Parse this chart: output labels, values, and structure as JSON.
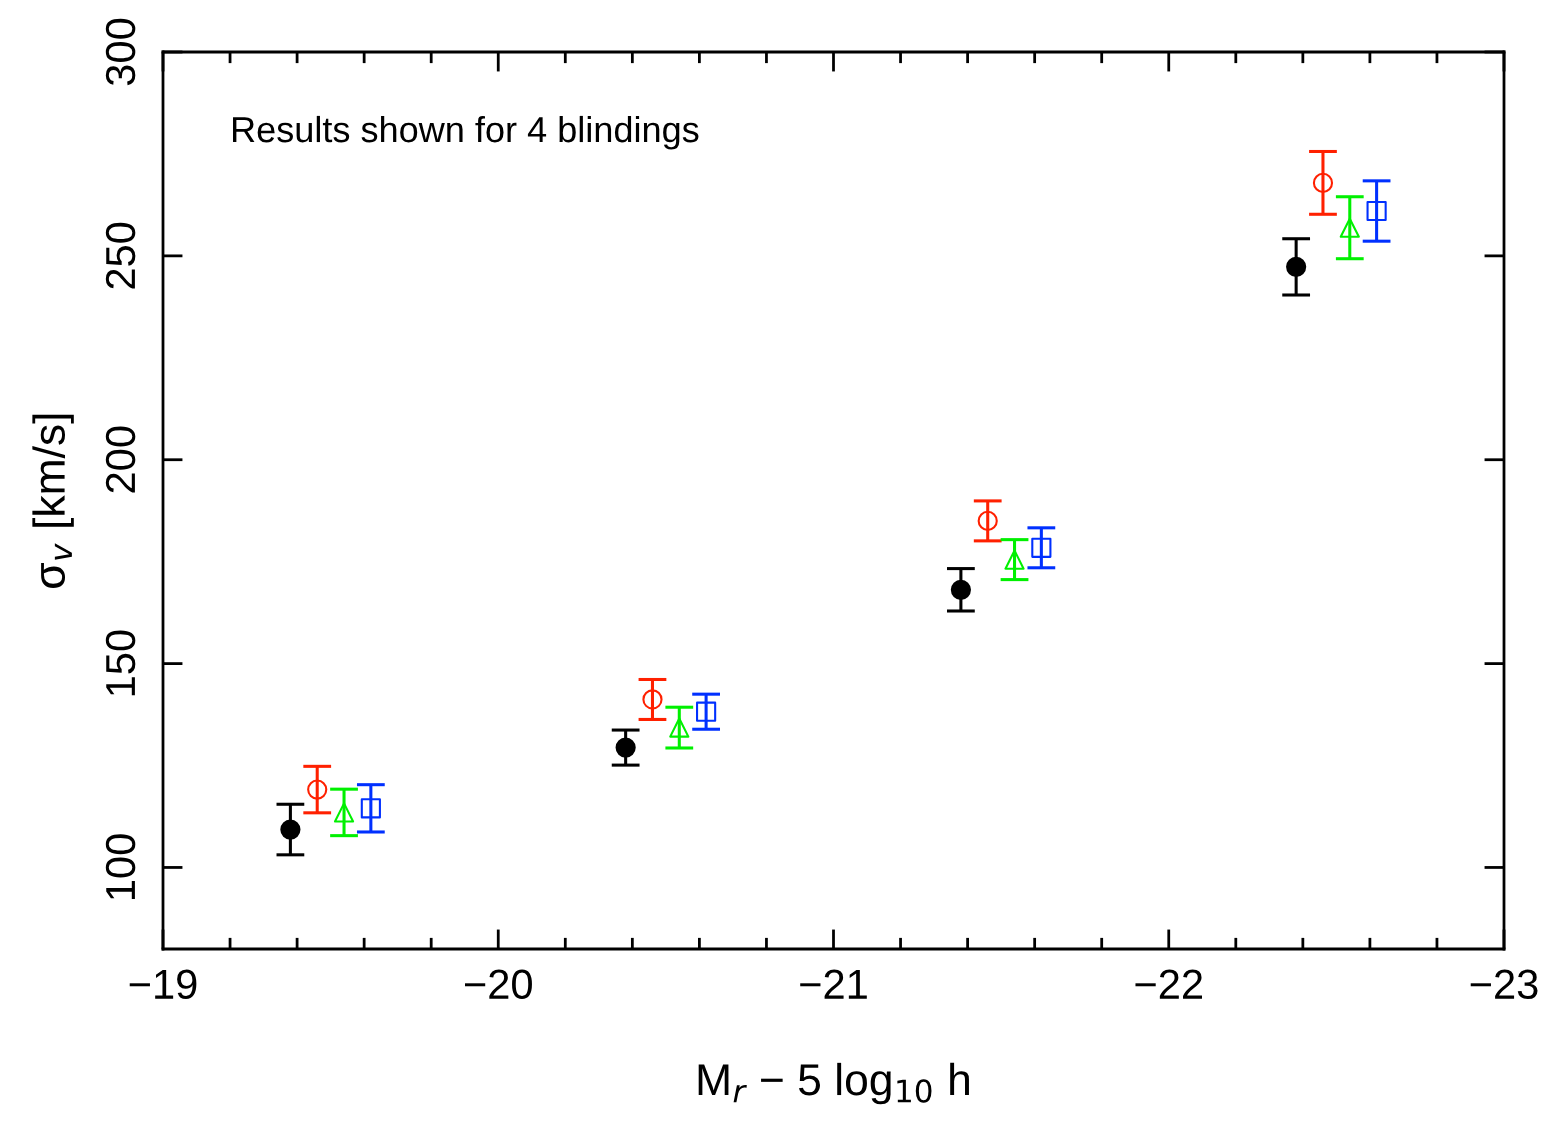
{
  "chart_data": {
    "type": "scatter",
    "xlabel": "M$_{r}$ − 5 log$_{10}$ h",
    "ylabel": "σ$_{v}$ [km/s]",
    "annotations": [
      "Results shown for 4 blindings"
    ],
    "xlim": [
      -19,
      -23
    ],
    "ylim": [
      80,
      300
    ],
    "xticks": [
      {
        "value": -19,
        "label": "−19"
      },
      {
        "value": -20,
        "label": "−20"
      },
      {
        "value": -21,
        "label": "−21"
      },
      {
        "value": -22,
        "label": "−22"
      },
      {
        "value": -23,
        "label": "−23"
      }
    ],
    "yticks": [
      100,
      150,
      200,
      250,
      300
    ],
    "grid": false,
    "series": [
      {
        "color": "#000000",
        "marker": "circle",
        "x": [
          -19.38,
          -20.38,
          -21.38,
          -22.38
        ],
        "values": [
          109.3,
          129.4,
          168.1,
          247.3
        ],
        "errors": [
          6.2,
          4.3,
          5.2,
          6.9
        ]
      },
      {
        "color": "#ff2000",
        "marker": "circle",
        "x": [
          -19.46,
          -20.46,
          -21.46,
          -22.46
        ],
        "values": [
          119.1,
          141.2,
          185.0,
          267.9
        ],
        "errors": [
          5.7,
          4.9,
          4.9,
          7.7
        ]
      },
      {
        "color": "#00f000",
        "marker": "triangle",
        "x": [
          -19.54,
          -20.54,
          -21.54,
          -22.54
        ],
        "values": [
          113.5,
          134.3,
          175.5,
          256.9
        ],
        "errors": [
          5.7,
          5.0,
          4.9,
          7.6
        ]
      },
      {
        "color": "#0030ff",
        "marker": "square",
        "x": [
          -19.62,
          -20.62,
          -21.62,
          -22.62
        ],
        "values": [
          114.5,
          138.2,
          178.4,
          261.0
        ],
        "errors": [
          5.8,
          4.3,
          4.9,
          7.4
        ]
      }
    ]
  }
}
